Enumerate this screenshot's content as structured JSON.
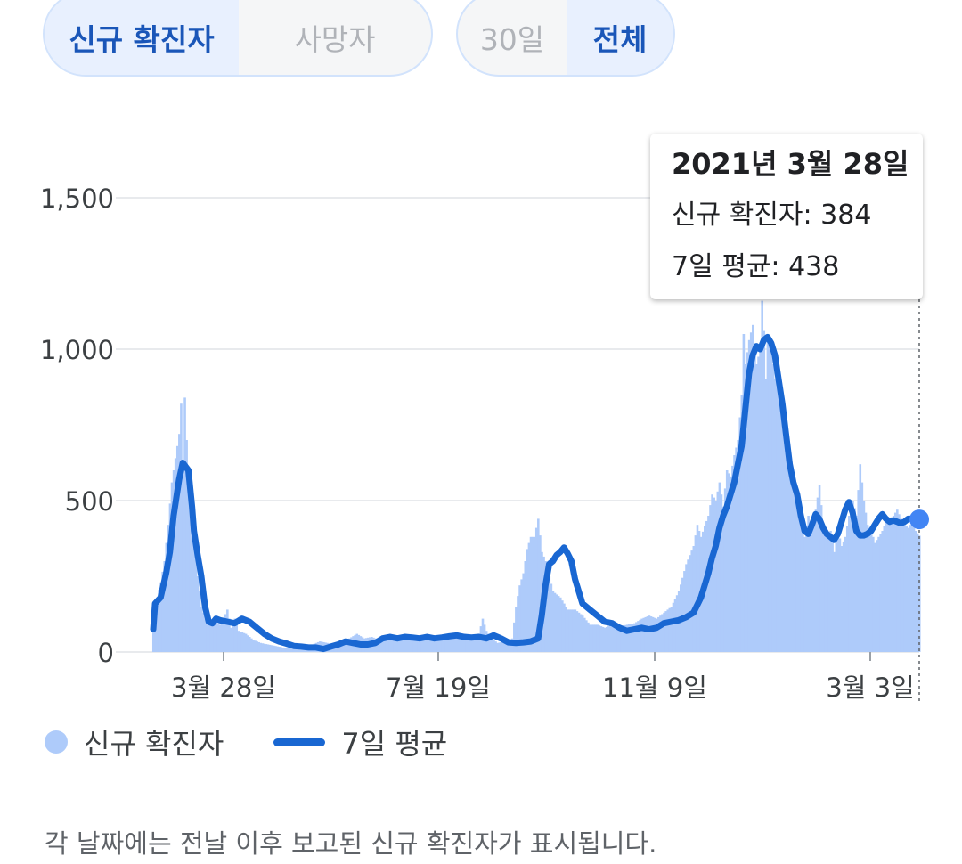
{
  "toggles": {
    "metric": [
      {
        "label": "신규 확진자",
        "active": true
      },
      {
        "label": "사망자",
        "active": false
      }
    ],
    "range": [
      {
        "label": "30일",
        "active": false
      },
      {
        "label": "전체",
        "active": true
      }
    ]
  },
  "tooltip": {
    "date": "2021년 3월 28일",
    "new_cases": "신규 확진자: 384",
    "avg": "7일 평균: 438"
  },
  "legend": {
    "bars": "신규 확진자",
    "line": "7일 평균"
  },
  "footnote": "각 날짜에는 전날 이후 보고된 신규 확진자가 표시됩니다.",
  "colors": {
    "bar": "#aecbfa",
    "line": "#1967d2",
    "marker": "#4285f4"
  },
  "chart_data": {
    "type": "bar",
    "y_ticks": [
      0,
      500,
      1000,
      1500
    ],
    "y_tick_labels": [
      "0",
      "500",
      "1,000",
      "1,500"
    ],
    "ylim": [
      0,
      1650
    ],
    "x_tick_labels": [
      "3월 28일",
      "7월 19일",
      "11월 9일",
      "3월 3일"
    ],
    "grid": true,
    "series": [
      {
        "name": "신규 확진자",
        "type": "bar",
        "points": [
          [
            0,
            120
          ],
          [
            2,
            180
          ],
          [
            4,
            230
          ],
          [
            6,
            300
          ],
          [
            8,
            420
          ],
          [
            10,
            560
          ],
          [
            12,
            640
          ],
          [
            14,
            720
          ],
          [
            15,
            820
          ],
          [
            16,
            600
          ],
          [
            17,
            840
          ],
          [
            18,
            700
          ],
          [
            19,
            560
          ],
          [
            20,
            480
          ],
          [
            22,
            380
          ],
          [
            24,
            250
          ],
          [
            26,
            150
          ],
          [
            28,
            110
          ],
          [
            30,
            95
          ],
          [
            32,
            105
          ],
          [
            34,
            100
          ],
          [
            36,
            90
          ],
          [
            38,
            110
          ],
          [
            40,
            140
          ],
          [
            42,
            80
          ],
          [
            44,
            110
          ],
          [
            46,
            70
          ],
          [
            50,
            60
          ],
          [
            54,
            40
          ],
          [
            58,
            30
          ],
          [
            62,
            25
          ],
          [
            66,
            20
          ],
          [
            70,
            15
          ],
          [
            74,
            12
          ],
          [
            78,
            10
          ],
          [
            82,
            15
          ],
          [
            86,
            25
          ],
          [
            90,
            35
          ],
          [
            94,
            30
          ],
          [
            98,
            25
          ],
          [
            102,
            35
          ],
          [
            106,
            45
          ],
          [
            110,
            60
          ],
          [
            114,
            45
          ],
          [
            118,
            50
          ],
          [
            122,
            40
          ],
          [
            126,
            50
          ],
          [
            130,
            45
          ],
          [
            134,
            50
          ],
          [
            138,
            45
          ],
          [
            142,
            55
          ],
          [
            146,
            50
          ],
          [
            150,
            55
          ],
          [
            154,
            45
          ],
          [
            158,
            50
          ],
          [
            162,
            45
          ],
          [
            166,
            55
          ],
          [
            170,
            45
          ],
          [
            174,
            50
          ],
          [
            176,
            60
          ],
          [
            178,
            110
          ],
          [
            180,
            70
          ],
          [
            182,
            50
          ],
          [
            186,
            30
          ],
          [
            190,
            35
          ],
          [
            194,
            45
          ],
          [
            196,
            150
          ],
          [
            198,
            220
          ],
          [
            200,
            260
          ],
          [
            202,
            340
          ],
          [
            204,
            380
          ],
          [
            206,
            380
          ],
          [
            208,
            440
          ],
          [
            210,
            330
          ],
          [
            212,
            300
          ],
          [
            214,
            250
          ],
          [
            216,
            200
          ],
          [
            220,
            180
          ],
          [
            224,
            140
          ],
          [
            228,
            140
          ],
          [
            232,
            120
          ],
          [
            236,
            90
          ],
          [
            240,
            90
          ],
          [
            244,
            80
          ],
          [
            248,
            90
          ],
          [
            252,
            85
          ],
          [
            256,
            90
          ],
          [
            260,
            95
          ],
          [
            264,
            110
          ],
          [
            268,
            120
          ],
          [
            272,
            110
          ],
          [
            276,
            130
          ],
          [
            280,
            150
          ],
          [
            284,
            200
          ],
          [
            288,
            290
          ],
          [
            292,
            350
          ],
          [
            294,
            420
          ],
          [
            296,
            380
          ],
          [
            300,
            450
          ],
          [
            302,
            520
          ],
          [
            304,
            500
          ],
          [
            306,
            560
          ],
          [
            308,
            480
          ],
          [
            310,
            600
          ],
          [
            312,
            580
          ],
          [
            314,
            650
          ],
          [
            316,
            700
          ],
          [
            318,
            850
          ],
          [
            319,
            1050
          ],
          [
            320,
            950
          ],
          [
            322,
            1030
          ],
          [
            324,
            1080
          ],
          [
            326,
            950
          ],
          [
            328,
            1000
          ],
          [
            329,
            1160
          ],
          [
            330,
            1060
          ],
          [
            331,
            900
          ],
          [
            332,
            1030
          ],
          [
            334,
            1000
          ],
          [
            336,
            900
          ],
          [
            338,
            850
          ],
          [
            340,
            780
          ],
          [
            342,
            700
          ],
          [
            344,
            600
          ],
          [
            346,
            550
          ],
          [
            348,
            520
          ],
          [
            350,
            460
          ],
          [
            352,
            380
          ],
          [
            354,
            450
          ],
          [
            356,
            400
          ],
          [
            358,
            470
          ],
          [
            360,
            550
          ],
          [
            362,
            420
          ],
          [
            364,
            380
          ],
          [
            366,
            400
          ],
          [
            368,
            330
          ],
          [
            370,
            400
          ],
          [
            372,
            350
          ],
          [
            374,
            380
          ],
          [
            376,
            450
          ],
          [
            378,
            500
          ],
          [
            380,
            450
          ],
          [
            382,
            620
          ],
          [
            384,
            500
          ],
          [
            386,
            420
          ],
          [
            388,
            400
          ],
          [
            390,
            360
          ],
          [
            392,
            380
          ],
          [
            394,
            400
          ],
          [
            396,
            430
          ],
          [
            398,
            440
          ],
          [
            400,
            450
          ],
          [
            402,
            470
          ],
          [
            404,
            440
          ],
          [
            406,
            420
          ],
          [
            408,
            410
          ],
          [
            410,
            430
          ],
          [
            412,
            400
          ],
          [
            414,
            384
          ]
        ]
      },
      {
        "name": "7일 평균",
        "type": "line",
        "points": [
          [
            0,
            75
          ],
          [
            1,
            160
          ],
          [
            4,
            180
          ],
          [
            7,
            260
          ],
          [
            9,
            330
          ],
          [
            11,
            450
          ],
          [
            14,
            570
          ],
          [
            16,
            625
          ],
          [
            19,
            600
          ],
          [
            21,
            480
          ],
          [
            22,
            400
          ],
          [
            24,
            320
          ],
          [
            26,
            250
          ],
          [
            28,
            150
          ],
          [
            30,
            100
          ],
          [
            32,
            95
          ],
          [
            34,
            110
          ],
          [
            36,
            105
          ],
          [
            40,
            100
          ],
          [
            44,
            95
          ],
          [
            48,
            110
          ],
          [
            52,
            100
          ],
          [
            56,
            80
          ],
          [
            60,
            60
          ],
          [
            64,
            45
          ],
          [
            68,
            35
          ],
          [
            72,
            28
          ],
          [
            76,
            20
          ],
          [
            80,
            18
          ],
          [
            84,
            15
          ],
          [
            88,
            15
          ],
          [
            92,
            10
          ],
          [
            96,
            18
          ],
          [
            100,
            25
          ],
          [
            104,
            35
          ],
          [
            108,
            30
          ],
          [
            112,
            25
          ],
          [
            116,
            25
          ],
          [
            120,
            30
          ],
          [
            124,
            45
          ],
          [
            128,
            50
          ],
          [
            132,
            45
          ],
          [
            136,
            50
          ],
          [
            140,
            48
          ],
          [
            144,
            45
          ],
          [
            148,
            50
          ],
          [
            152,
            45
          ],
          [
            156,
            48
          ],
          [
            160,
            52
          ],
          [
            164,
            55
          ],
          [
            168,
            50
          ],
          [
            172,
            48
          ],
          [
            176,
            50
          ],
          [
            180,
            45
          ],
          [
            184,
            55
          ],
          [
            188,
            45
          ],
          [
            192,
            32
          ],
          [
            196,
            30
          ],
          [
            200,
            32
          ],
          [
            204,
            35
          ],
          [
            208,
            45
          ],
          [
            210,
            120
          ],
          [
            212,
            220
          ],
          [
            214,
            290
          ],
          [
            216,
            300
          ],
          [
            218,
            320
          ],
          [
            220,
            330
          ],
          [
            222,
            345
          ],
          [
            224,
            325
          ],
          [
            226,
            300
          ],
          [
            228,
            240
          ],
          [
            232,
            160
          ],
          [
            236,
            140
          ],
          [
            240,
            120
          ],
          [
            244,
            100
          ],
          [
            248,
            95
          ],
          [
            252,
            80
          ],
          [
            256,
            70
          ],
          [
            260,
            75
          ],
          [
            264,
            80
          ],
          [
            268,
            75
          ],
          [
            272,
            80
          ],
          [
            276,
            95
          ],
          [
            280,
            100
          ],
          [
            284,
            105
          ],
          [
            288,
            115
          ],
          [
            292,
            130
          ],
          [
            296,
            180
          ],
          [
            300,
            260
          ],
          [
            302,
            310
          ],
          [
            304,
            350
          ],
          [
            306,
            410
          ],
          [
            308,
            450
          ],
          [
            310,
            480
          ],
          [
            312,
            520
          ],
          [
            314,
            560
          ],
          [
            316,
            620
          ],
          [
            318,
            680
          ],
          [
            320,
            800
          ],
          [
            322,
            920
          ],
          [
            324,
            980
          ],
          [
            326,
            1010
          ],
          [
            328,
            1000
          ],
          [
            330,
            1030
          ],
          [
            332,
            1040
          ],
          [
            334,
            1020
          ],
          [
            336,
            980
          ],
          [
            338,
            900
          ],
          [
            340,
            820
          ],
          [
            342,
            720
          ],
          [
            344,
            620
          ],
          [
            346,
            560
          ],
          [
            348,
            520
          ],
          [
            350,
            450
          ],
          [
            352,
            400
          ],
          [
            354,
            390
          ],
          [
            356,
            420
          ],
          [
            358,
            455
          ],
          [
            360,
            440
          ],
          [
            362,
            410
          ],
          [
            364,
            390
          ],
          [
            366,
            380
          ],
          [
            368,
            370
          ],
          [
            370,
            390
          ],
          [
            372,
            430
          ],
          [
            374,
            470
          ],
          [
            376,
            495
          ],
          [
            378,
            460
          ],
          [
            380,
            400
          ],
          [
            382,
            385
          ],
          [
            384,
            385
          ],
          [
            386,
            390
          ],
          [
            388,
            400
          ],
          [
            390,
            420
          ],
          [
            392,
            440
          ],
          [
            394,
            455
          ],
          [
            396,
            440
          ],
          [
            398,
            430
          ],
          [
            400,
            435
          ],
          [
            402,
            430
          ],
          [
            404,
            425
          ],
          [
            406,
            430
          ],
          [
            408,
            440
          ],
          [
            410,
            440
          ],
          [
            412,
            440
          ],
          [
            414,
            438
          ]
        ]
      }
    ]
  }
}
